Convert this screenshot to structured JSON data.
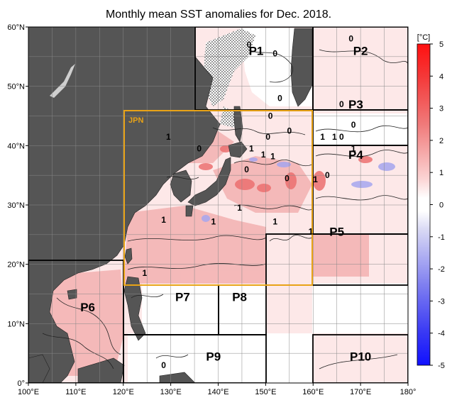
{
  "title": "Monthly mean SST anomalies for Dec. 2018.",
  "axes": {
    "lon_labels": [
      "100°E",
      "110°E",
      "120°E",
      "130°E",
      "140°E",
      "150°E",
      "160°E",
      "170°E",
      "180°"
    ],
    "lon_values": [
      100,
      110,
      120,
      130,
      140,
      150,
      160,
      170,
      180
    ],
    "lat_labels": [
      "0°",
      "10°N",
      "20°N",
      "30°N",
      "40°N",
      "50°N",
      "60°N"
    ],
    "lat_values": [
      0,
      10,
      20,
      30,
      40,
      50,
      60
    ],
    "lon_range": [
      100,
      180
    ],
    "lat_range": [
      0,
      60
    ]
  },
  "colorbar": {
    "unit": "[°C]",
    "ticks": [
      "5",
      "4",
      "3",
      "2",
      "1",
      "0",
      "-1",
      "-2",
      "-3",
      "-4",
      "-5"
    ],
    "tick_values": [
      5,
      4,
      3,
      2,
      1,
      0,
      -1,
      -2,
      -3,
      -4,
      -5
    ],
    "range": [
      -5,
      5
    ],
    "colors": {
      "warm_max": "#ff0000",
      "warm_mid": "#f08080",
      "warm_low": "#fbdada",
      "neutral": "#ffffff",
      "cool_low": "#dcdcf5",
      "cool_mid": "#8080f0",
      "cool_max": "#0000ff"
    }
  },
  "jpn_box": {
    "label": "JPN",
    "color": "#e8a317",
    "lon": [
      120,
      160
    ],
    "lat": [
      20,
      50
    ]
  },
  "colors": {
    "land": "#555555",
    "grid": "#888888",
    "region_border": "#000000",
    "warm_sea": "#f4b8b8",
    "light_warm_sea": "#fbdede"
  },
  "regions": [
    {
      "label": "P1",
      "label_lon": 148,
      "label_lat": 56
    },
    {
      "label": "P2",
      "label_lon": 170,
      "label_lat": 56
    },
    {
      "label": "P3",
      "label_lon": 169,
      "label_lat": 47
    },
    {
      "label": "P4",
      "label_lon": 169,
      "label_lat": 38.5
    },
    {
      "label": "P5",
      "label_lon": 165,
      "label_lat": 25.5
    },
    {
      "label": "P6",
      "label_lon": 112.5,
      "label_lat": 12.8
    },
    {
      "label": "P7",
      "label_lon": 132.5,
      "label_lat": 14.5
    },
    {
      "label": "P8",
      "label_lon": 144.5,
      "label_lat": 14.5
    },
    {
      "label": "P9",
      "label_lon": 139,
      "label_lat": 4.5
    },
    {
      "label": "P10",
      "label_lon": 170,
      "label_lat": 4.5
    }
  ],
  "contour_labels": [
    {
      "text": "0",
      "lon": 146.5,
      "lat": 57
    },
    {
      "text": "0",
      "lon": 152,
      "lat": 55.5
    },
    {
      "text": "0",
      "lon": 168,
      "lat": 58
    },
    {
      "text": "0",
      "lon": 153,
      "lat": 48
    },
    {
      "text": "0",
      "lon": 166,
      "lat": 47
    },
    {
      "text": "0",
      "lon": 151,
      "lat": 45
    },
    {
      "text": "0",
      "lon": 168.5,
      "lat": 43.5
    },
    {
      "text": "1",
      "lon": 129.5,
      "lat": 41.5
    },
    {
      "text": "0",
      "lon": 136,
      "lat": 39.5
    },
    {
      "text": "0",
      "lon": 150.5,
      "lat": 41.5
    },
    {
      "text": "1",
      "lon": 147,
      "lat": 39.5
    },
    {
      "text": "1",
      "lon": 149.5,
      "lat": 38.5
    },
    {
      "text": "1",
      "lon": 151.5,
      "lat": 38.2
    },
    {
      "text": "0",
      "lon": 155,
      "lat": 42.5
    },
    {
      "text": "1",
      "lon": 162,
      "lat": 41.5
    },
    {
      "text": "1",
      "lon": 164.5,
      "lat": 41.5
    },
    {
      "text": "0",
      "lon": 166,
      "lat": 41.5
    },
    {
      "text": "1",
      "lon": 168.5,
      "lat": 39.5
    },
    {
      "text": "0",
      "lon": 146,
      "lat": 36
    },
    {
      "text": "0",
      "lon": 154.5,
      "lat": 34.5
    },
    {
      "text": "1",
      "lon": 160.5,
      "lat": 34.3
    },
    {
      "text": "0",
      "lon": 163,
      "lat": 35
    },
    {
      "text": "1",
      "lon": 144.5,
      "lat": 29.5
    },
    {
      "text": "1",
      "lon": 128.5,
      "lat": 27.5
    },
    {
      "text": "1",
      "lon": 139,
      "lat": 27.2
    },
    {
      "text": "1",
      "lon": 152,
      "lat": 27.2
    },
    {
      "text": "1",
      "lon": 159.5,
      "lat": 25.5
    },
    {
      "text": "1",
      "lon": 124.5,
      "lat": 18.5
    },
    {
      "text": "0",
      "lon": 128.5,
      "lat": 3
    }
  ]
}
